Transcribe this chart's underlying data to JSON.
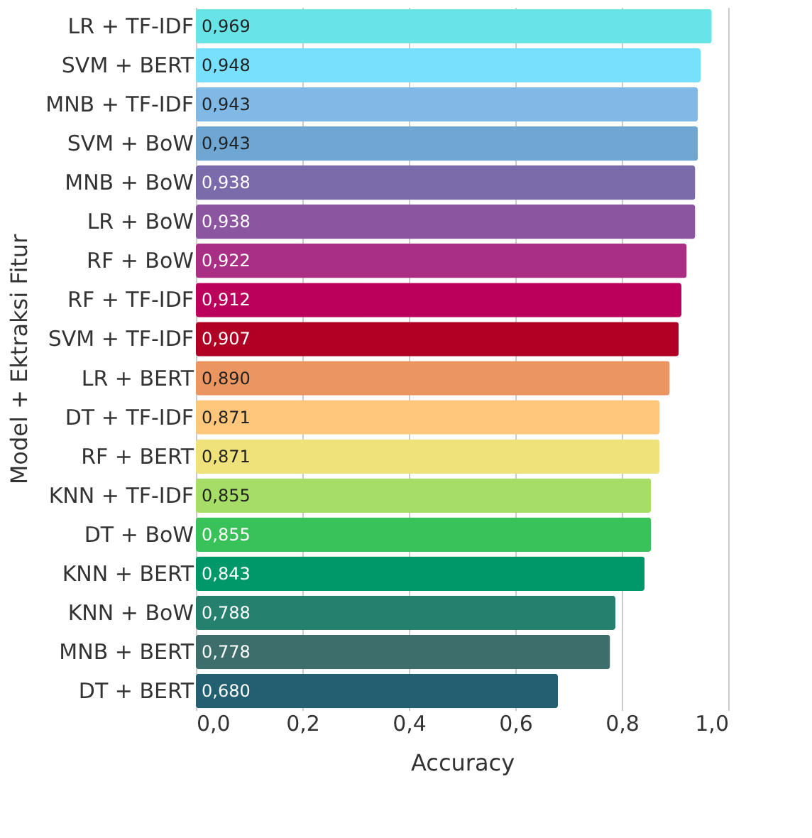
{
  "chart_data": {
    "type": "bar",
    "orientation": "horizontal",
    "xlabel": "Accuracy",
    "ylabel": "Model + Ektraksi Fitur",
    "categories": [
      "LR + TF-IDF",
      "SVM + BERT",
      "MNB + TF-IDF",
      "SVM + BoW",
      "MNB + BoW",
      "LR + BoW",
      "RF + BoW",
      "RF + TF-IDF",
      "SVM + TF-IDF",
      "LR + BERT",
      "DT + TF-IDF",
      "RF + BERT",
      "KNN + TF-IDF",
      "DT + BoW",
      "KNN + BERT",
      "KNN + BoW",
      "MNB + BERT",
      "DT + BERT"
    ],
    "values": [
      0.969,
      0.948,
      0.943,
      0.943,
      0.938,
      0.938,
      0.922,
      0.912,
      0.907,
      0.89,
      0.871,
      0.871,
      0.855,
      0.855,
      0.843,
      0.788,
      0.778,
      0.68
    ],
    "value_labels": [
      "0,969",
      "0,948",
      "0,943",
      "0,943",
      "0,938",
      "0,938",
      "0,922",
      "0,912",
      "0,907",
      "0,890",
      "0,871",
      "0,871",
      "0,855",
      "0,855",
      "0,843",
      "0,788",
      "0,778",
      "0,680"
    ],
    "colors": [
      "#68e4e6",
      "#78e0fc",
      "#80b8e6",
      "#70a6d2",
      "#7b6bab",
      "#8c55a0",
      "#a82f83",
      "#bb005c",
      "#b00024",
      "#eb9561",
      "#ffc77b",
      "#efe27b",
      "#a5dd66",
      "#3ac25a",
      "#009868",
      "#25806e",
      "#3d6e6c",
      "#225f70"
    ],
    "xlim": [
      0,
      1.0
    ],
    "xticks": [
      {
        "value": 0,
        "label": "0,0"
      },
      {
        "value": 0.2,
        "label": "0,2"
      },
      {
        "value": 0.4,
        "label": "0,4"
      },
      {
        "value": 0.6,
        "label": "0,6"
      },
      {
        "value": 0.8,
        "label": "0,8"
      },
      {
        "value": 1.0,
        "label": "1,0"
      }
    ],
    "grid": "x"
  }
}
